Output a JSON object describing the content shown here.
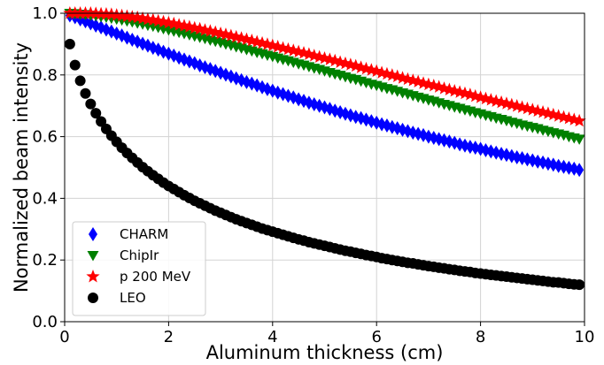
{
  "chart_data": {
    "type": "scatter",
    "xlabel": "Aluminum thickness (cm)",
    "ylabel": "Normalized beam intensity",
    "xlim": [
      0,
      10
    ],
    "ylim": [
      0,
      1.0
    ],
    "xticks": [
      "0",
      "2",
      "4",
      "6",
      "8",
      "10"
    ],
    "yticks": [
      "0.0",
      "0.2",
      "0.4",
      "0.6",
      "0.8",
      "1.0"
    ],
    "grid": true,
    "legend_position": "lower-left",
    "x": [
      0.1,
      0.2,
      0.3,
      0.4,
      0.5,
      0.6,
      0.7,
      0.8,
      0.9,
      1.0,
      1.1,
      1.2,
      1.3,
      1.4,
      1.5,
      1.6,
      1.7,
      1.8,
      1.9,
      2.0,
      2.1,
      2.2,
      2.3,
      2.4,
      2.5,
      2.6,
      2.7,
      2.8,
      2.9,
      3.0,
      3.1,
      3.2,
      3.3,
      3.4,
      3.5,
      3.6,
      3.7,
      3.8,
      3.9,
      4.0,
      4.1,
      4.2,
      4.3,
      4.4,
      4.5,
      4.6,
      4.7,
      4.8,
      4.9,
      5.0,
      5.1,
      5.2,
      5.3,
      5.4,
      5.5,
      5.6,
      5.7,
      5.8,
      5.9,
      6.0,
      6.1,
      6.2,
      6.3,
      6.4,
      6.5,
      6.6,
      6.7,
      6.8,
      6.9,
      7.0,
      7.1,
      7.2,
      7.3,
      7.4,
      7.5,
      7.6,
      7.7,
      7.8,
      7.9,
      8.0,
      8.1,
      8.2,
      8.3,
      8.4,
      8.5,
      8.6,
      8.7,
      8.8,
      8.9,
      9.0,
      9.1,
      9.2,
      9.3,
      9.4,
      9.5,
      9.6,
      9.7,
      9.8,
      9.9
    ],
    "series": [
      {
        "name": "CHARM",
        "marker": "diamond",
        "color": "#0000ff",
        "values": [
          0.993,
          0.987,
          0.98,
          0.974,
          0.967,
          0.96,
          0.954,
          0.947,
          0.941,
          0.934,
          0.928,
          0.921,
          0.914,
          0.908,
          0.901,
          0.895,
          0.888,
          0.882,
          0.875,
          0.869,
          0.863,
          0.856,
          0.85,
          0.844,
          0.838,
          0.831,
          0.825,
          0.819,
          0.813,
          0.807,
          0.801,
          0.795,
          0.789,
          0.783,
          0.777,
          0.772,
          0.766,
          0.76,
          0.754,
          0.749,
          0.743,
          0.738,
          0.732,
          0.727,
          0.721,
          0.716,
          0.71,
          0.705,
          0.7,
          0.695,
          0.69,
          0.684,
          0.679,
          0.674,
          0.669,
          0.664,
          0.66,
          0.655,
          0.65,
          0.645,
          0.64,
          0.636,
          0.631,
          0.627,
          0.622,
          0.618,
          0.613,
          0.609,
          0.605,
          0.6,
          0.596,
          0.592,
          0.588,
          0.584,
          0.58,
          0.575,
          0.571,
          0.567,
          0.564,
          0.56,
          0.556,
          0.552,
          0.548,
          0.544,
          0.541,
          0.537,
          0.533,
          0.53,
          0.526,
          0.523,
          0.519,
          0.516,
          0.512,
          0.509,
          0.505,
          0.502,
          0.499,
          0.496,
          0.492
        ]
      },
      {
        "name": "ChipIr",
        "marker": "triangle-down",
        "color": "#008000",
        "values": [
          1.0,
          0.999,
          0.997,
          0.996,
          0.994,
          0.992,
          0.989,
          0.987,
          0.984,
          0.981,
          0.978,
          0.975,
          0.972,
          0.968,
          0.965,
          0.961,
          0.958,
          0.954,
          0.95,
          0.946,
          0.942,
          0.938,
          0.934,
          0.93,
          0.926,
          0.922,
          0.918,
          0.913,
          0.909,
          0.905,
          0.9,
          0.896,
          0.891,
          0.887,
          0.882,
          0.878,
          0.873,
          0.869,
          0.864,
          0.86,
          0.855,
          0.85,
          0.846,
          0.841,
          0.836,
          0.832,
          0.827,
          0.822,
          0.818,
          0.813,
          0.808,
          0.803,
          0.799,
          0.794,
          0.789,
          0.785,
          0.78,
          0.775,
          0.77,
          0.766,
          0.761,
          0.756,
          0.752,
          0.747,
          0.742,
          0.738,
          0.733,
          0.728,
          0.724,
          0.719,
          0.715,
          0.71,
          0.705,
          0.701,
          0.696,
          0.692,
          0.687,
          0.683,
          0.678,
          0.674,
          0.669,
          0.665,
          0.66,
          0.656,
          0.652,
          0.647,
          0.643,
          0.638,
          0.634,
          0.63,
          0.626,
          0.621,
          0.617,
          0.613,
          0.609,
          0.605,
          0.6,
          0.596,
          0.592
        ]
      },
      {
        "name": "p 200 MeV",
        "marker": "star",
        "color": "#ff0000",
        "values": [
          1.0,
          1.0,
          1.0,
          1.0,
          1.0,
          0.999,
          0.998,
          0.997,
          0.996,
          0.994,
          0.992,
          0.99,
          0.988,
          0.986,
          0.983,
          0.98,
          0.978,
          0.975,
          0.972,
          0.969,
          0.966,
          0.962,
          0.959,
          0.956,
          0.952,
          0.949,
          0.945,
          0.942,
          0.938,
          0.934,
          0.931,
          0.927,
          0.923,
          0.919,
          0.915,
          0.911,
          0.907,
          0.903,
          0.899,
          0.895,
          0.891,
          0.887,
          0.883,
          0.879,
          0.875,
          0.871,
          0.867,
          0.862,
          0.858,
          0.854,
          0.85,
          0.846,
          0.841,
          0.837,
          0.833,
          0.829,
          0.824,
          0.82,
          0.816,
          0.812,
          0.807,
          0.803,
          0.799,
          0.795,
          0.79,
          0.786,
          0.782,
          0.778,
          0.773,
          0.769,
          0.765,
          0.761,
          0.756,
          0.752,
          0.748,
          0.744,
          0.74,
          0.736,
          0.731,
          0.727,
          0.723,
          0.719,
          0.715,
          0.711,
          0.707,
          0.703,
          0.699,
          0.695,
          0.691,
          0.687,
          0.683,
          0.679,
          0.675,
          0.671,
          0.667,
          0.663,
          0.659,
          0.655,
          0.651
        ]
      },
      {
        "name": "LEO",
        "marker": "circle",
        "color": "#000000",
        "values": [
          0.9,
          0.832,
          0.781,
          0.74,
          0.706,
          0.676,
          0.649,
          0.625,
          0.603,
          0.583,
          0.564,
          0.547,
          0.531,
          0.516,
          0.501,
          0.488,
          0.475,
          0.463,
          0.451,
          0.44,
          0.43,
          0.42,
          0.41,
          0.401,
          0.392,
          0.384,
          0.376,
          0.368,
          0.36,
          0.353,
          0.346,
          0.339,
          0.332,
          0.326,
          0.32,
          0.314,
          0.308,
          0.302,
          0.297,
          0.292,
          0.287,
          0.282,
          0.277,
          0.272,
          0.267,
          0.263,
          0.258,
          0.254,
          0.25,
          0.246,
          0.242,
          0.238,
          0.234,
          0.23,
          0.227,
          0.223,
          0.22,
          0.216,
          0.213,
          0.21,
          0.206,
          0.203,
          0.2,
          0.197,
          0.194,
          0.191,
          0.189,
          0.186,
          0.183,
          0.18,
          0.178,
          0.175,
          0.173,
          0.17,
          0.168,
          0.165,
          0.163,
          0.161,
          0.158,
          0.156,
          0.154,
          0.152,
          0.15,
          0.148,
          0.146,
          0.144,
          0.142,
          0.14,
          0.138,
          0.136,
          0.134,
          0.132,
          0.13,
          0.128,
          0.127,
          0.125,
          0.123,
          0.121,
          0.12
        ]
      }
    ]
  }
}
